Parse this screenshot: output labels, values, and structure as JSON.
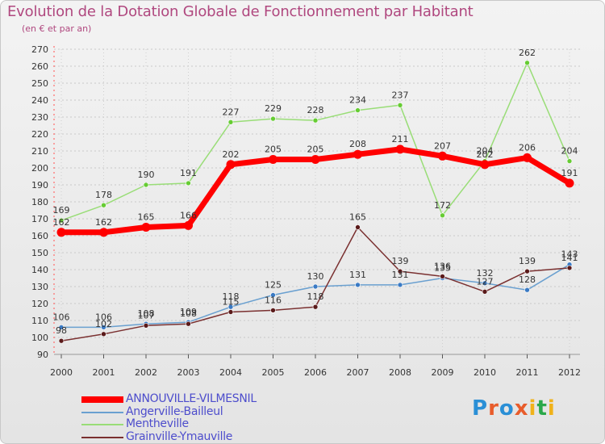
{
  "title": "Evolution de la Dotation Globale de Fonctionnement par Habitant",
  "subtitle": "(en € et par an)",
  "logo": {
    "text": "Proxiti",
    "colors": [
      "#2a8fd6",
      "#e85c2b",
      "#2a8fd6",
      "#e85c2b",
      "#f0b21a",
      "#2aa84a",
      "#f0b21a"
    ]
  },
  "chart_data": {
    "type": "line",
    "categories": [
      "2000",
      "2001",
      "2002",
      "2003",
      "2004",
      "2005",
      "2006",
      "2007",
      "2008",
      "2009",
      "2010",
      "2011",
      "2012"
    ],
    "ylim": [
      90,
      270
    ],
    "yticks": [
      90,
      100,
      110,
      120,
      130,
      140,
      150,
      160,
      170,
      180,
      190,
      200,
      210,
      220,
      230,
      240,
      250,
      260,
      270
    ],
    "series": [
      {
        "name": "ANNOUVILLE-VILMESNIL",
        "color": "#ff0000",
        "width": 7,
        "dot": "#ff0000",
        "values": [
          162,
          162,
          165,
          166,
          202,
          205,
          205,
          208,
          211,
          207,
          202,
          206,
          191
        ],
        "labels": [
          "162",
          "162",
          "165",
          "166",
          "202",
          "205",
          "205",
          "208",
          "211",
          "207",
          "202",
          "206",
          "191"
        ]
      },
      {
        "name": "Angerville-Bailleul",
        "color": "#6aa0d0",
        "width": 1.5,
        "dot": "#3a7ac4",
        "values": [
          106,
          106,
          108,
          109,
          118,
          125,
          130,
          131,
          131,
          135,
          132,
          128,
          143
        ],
        "labels": [
          "106",
          "106",
          "108",
          "109",
          "118",
          "125",
          "130",
          "131",
          "131",
          "135",
          "132",
          "128",
          "143"
        ]
      },
      {
        "name": "Mentheville",
        "color": "#99dd77",
        "width": 1.5,
        "dot": "#66cc33",
        "values": [
          169,
          178,
          190,
          191,
          227,
          229,
          228,
          234,
          237,
          172,
          204,
          262,
          204
        ],
        "labels": [
          "169",
          "178",
          "190",
          "191",
          "227",
          "229",
          "228",
          "234",
          "237",
          "172",
          "204",
          "262",
          "204"
        ]
      },
      {
        "name": "Grainville-Ymauville",
        "color": "#7a3030",
        "width": 1.5,
        "dot": "#5a1a1a",
        "values": [
          98,
          102,
          107,
          108,
          115,
          116,
          118,
          165,
          139,
          136,
          127,
          139,
          141
        ],
        "labels": [
          "98",
          "102",
          "107",
          "108",
          "115",
          "116",
          "118",
          "165",
          "139",
          "136",
          "127",
          "139",
          "141"
        ]
      }
    ]
  }
}
